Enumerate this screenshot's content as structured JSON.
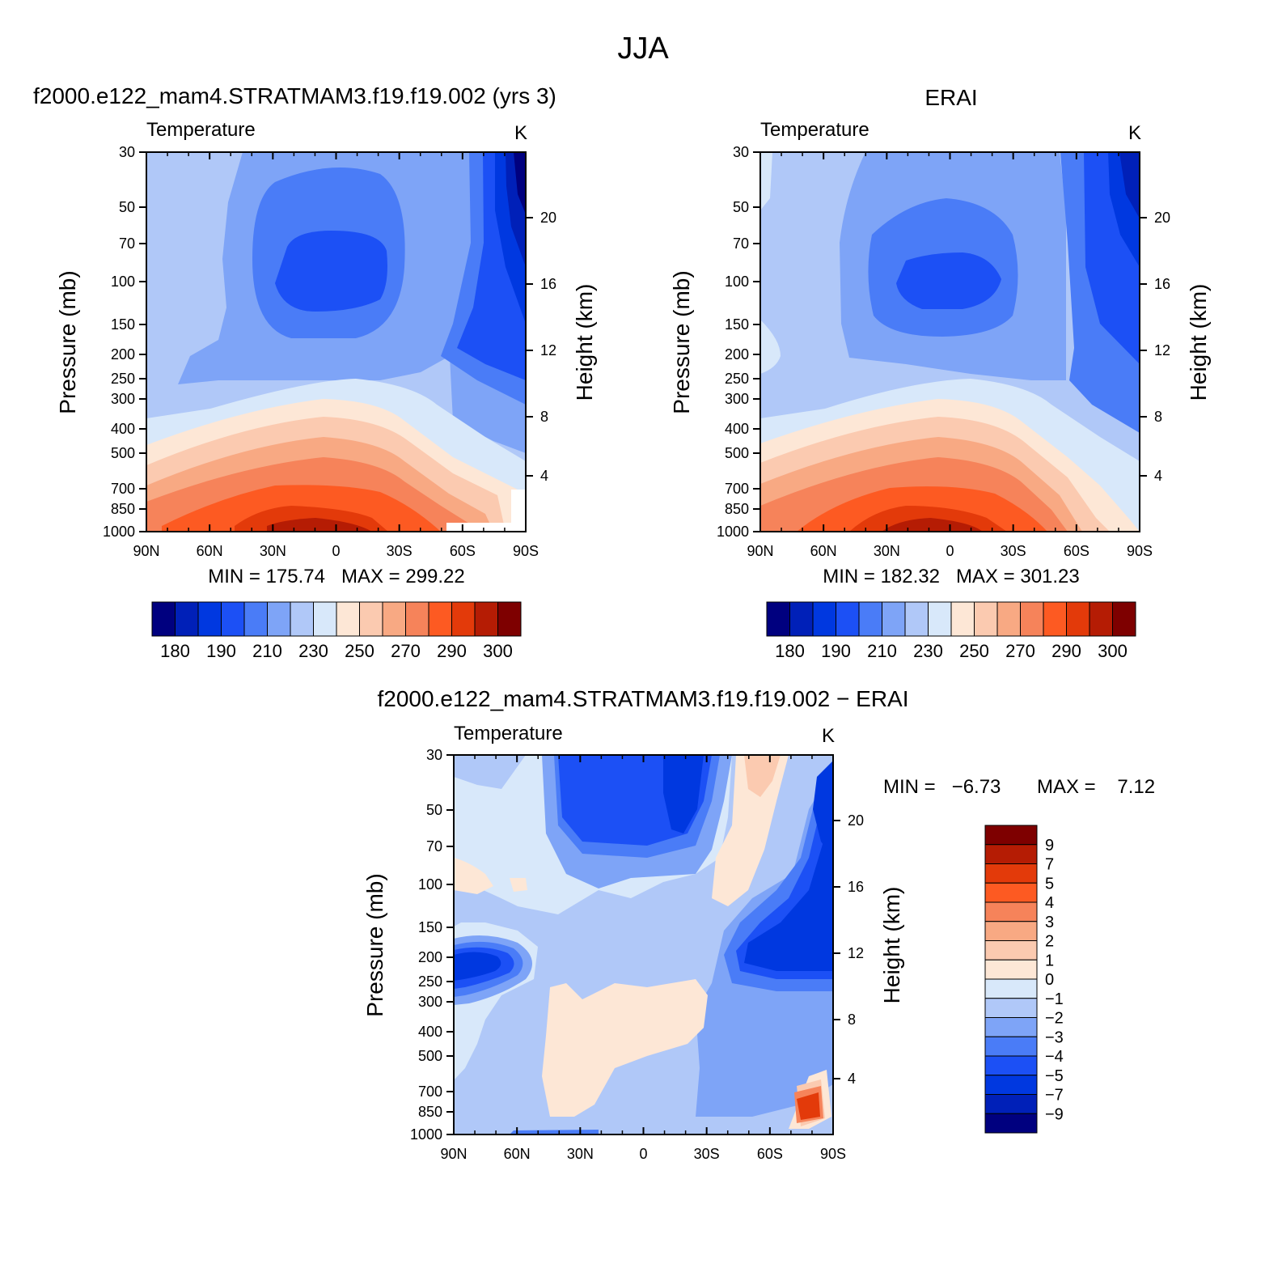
{
  "figure_title": "JJA",
  "colors": {
    "abs_levels": [
      "#00007f",
      "#0020b8",
      "#0038e0",
      "#1c50f5",
      "#4a7cf7",
      "#7ea4f7",
      "#b0c8f8",
      "#d8e8fa",
      "#fde7d6",
      "#fbcab0",
      "#f8a983",
      "#f6835a",
      "#fd5a22",
      "#e33a0a",
      "#b51c04",
      "#7e0000"
    ],
    "diff_levels": [
      "#7e0000",
      "#b51c04",
      "#e33a0a",
      "#fd5a22",
      "#f6835a",
      "#f8a983",
      "#fbcab0",
      "#fde7d6",
      "#d8e8fa",
      "#b0c8f8",
      "#7ea4f7",
      "#4a7cf7",
      "#1c50f5",
      "#0038e0",
      "#0020b8",
      "#00007f"
    ]
  },
  "chart_data": [
    {
      "type": "heatmap",
      "panel": "model",
      "title": "f2000.e122_mam4.STRATMAM3.f19.f19.002 (yrs 3)",
      "left_label": "Temperature",
      "units": "K",
      "xlabel": "",
      "ylabel": "Pressure (mb)",
      "y2label": "Height (km)",
      "x_ticks": [
        "90N",
        "60N",
        "30N",
        "0",
        "30S",
        "60S",
        "90S"
      ],
      "x_values": [
        90,
        60,
        30,
        0,
        -30,
        -60,
        -90
      ],
      "y_ticks": [
        "30",
        "50",
        "70",
        "100",
        "150",
        "200",
        "250",
        "300",
        "400",
        "500",
        "700",
        "850",
        "1000"
      ],
      "y_values": [
        30,
        50,
        70,
        100,
        150,
        200,
        250,
        300,
        400,
        500,
        700,
        850,
        1000
      ],
      "ylim": [
        1000,
        30
      ],
      "y2_ticks": [
        "4",
        "8",
        "12",
        "16",
        "20"
      ],
      "y2_values": [
        4,
        8,
        12,
        16,
        20
      ],
      "stats": "MIN = 175.74   MAX = 299.22",
      "min": 175.74,
      "max": 299.22,
      "colorbar_labels": [
        "180",
        "190",
        "210",
        "230",
        "250",
        "270",
        "290",
        "300"
      ],
      "levels": [
        175,
        180,
        185,
        190,
        200,
        210,
        220,
        230,
        240,
        250,
        260,
        270,
        280,
        290,
        295,
        300
      ]
    },
    {
      "type": "heatmap",
      "panel": "obs",
      "title": "ERAI",
      "left_label": "Temperature",
      "units": "K",
      "ylabel": "Pressure (mb)",
      "y2label": "Height (km)",
      "x_ticks": [
        "90N",
        "60N",
        "30N",
        "0",
        "30S",
        "60S",
        "90S"
      ],
      "y_ticks": [
        "30",
        "50",
        "70",
        "100",
        "150",
        "200",
        "250",
        "300",
        "400",
        "500",
        "700",
        "850",
        "1000"
      ],
      "y2_ticks": [
        "4",
        "8",
        "12",
        "16",
        "20"
      ],
      "stats": "MIN = 182.32   MAX = 301.23",
      "min": 182.32,
      "max": 301.23,
      "colorbar_labels": [
        "180",
        "190",
        "210",
        "230",
        "250",
        "270",
        "290",
        "300"
      ]
    },
    {
      "type": "heatmap",
      "panel": "difference",
      "title": "f2000.e122_mam4.STRATMAM3.f19.f19.002 − ERAI",
      "left_label": "Temperature",
      "units": "K",
      "ylabel": "Pressure (mb)",
      "y2label": "Height (km)",
      "x_ticks": [
        "90N",
        "60N",
        "30N",
        "0",
        "30S",
        "60S",
        "90S"
      ],
      "y_ticks": [
        "30",
        "50",
        "70",
        "100",
        "150",
        "200",
        "250",
        "300",
        "400",
        "500",
        "700",
        "850",
        "1000"
      ],
      "y2_ticks": [
        "4",
        "8",
        "12",
        "16",
        "20"
      ],
      "stats_min": "MIN =   −6.73",
      "stats_max": "MAX =    7.12",
      "min": -6.73,
      "max": 7.12,
      "colorbar_labels": [
        "9",
        "7",
        "5",
        "4",
        "3",
        "2",
        "1",
        "0",
        "−1",
        "−2",
        "−3",
        "−4",
        "−5",
        "−7",
        "−9"
      ],
      "levels": [
        9,
        7,
        5,
        4,
        3,
        2,
        1,
        0,
        -1,
        -2,
        -3,
        -4,
        -5,
        -7,
        -9
      ]
    }
  ]
}
